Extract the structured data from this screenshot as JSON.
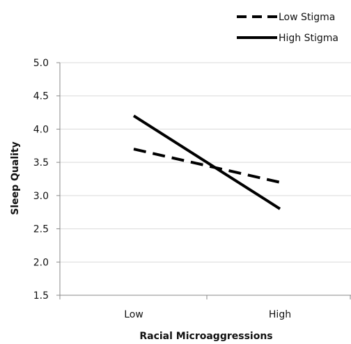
{
  "chart_data": {
    "type": "line",
    "xlabel": "Racial Microaggressions",
    "ylabel": "Sleep Quality",
    "categories": [
      "Low",
      "High"
    ],
    "ylim": [
      1.5,
      5.0
    ],
    "yticks": [
      "5.0",
      "4.5",
      "4.0",
      "3.5",
      "3.0",
      "2.5",
      "2.0",
      "1.5"
    ],
    "grid": true,
    "legend_position": "top-right",
    "series": [
      {
        "name": "Low Stigma",
        "values": [
          3.7,
          3.2
        ],
        "style": "dashed",
        "color": "#000000"
      },
      {
        "name": "High Stigma",
        "values": [
          4.2,
          2.8
        ],
        "style": "solid",
        "color": "#000000"
      }
    ]
  }
}
